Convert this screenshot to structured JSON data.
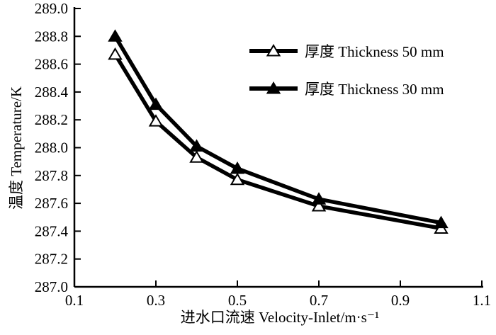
{
  "chart_data": {
    "type": "line",
    "x": [
      0.2,
      0.3,
      0.4,
      0.5,
      0.7,
      1.0
    ],
    "series": [
      {
        "name": "厚度 Thickness 50 mm",
        "marker": "open-triangle",
        "values": [
          288.67,
          288.19,
          287.93,
          287.77,
          287.58,
          287.42
        ]
      },
      {
        "name": "厚度 Thickness 30 mm",
        "marker": "filled-triangle",
        "values": [
          288.8,
          288.31,
          288.01,
          287.85,
          287.63,
          287.46
        ]
      }
    ],
    "title": "",
    "xlabel": "进水口流速 Velocity-Inlet/m·s⁻¹",
    "ylabel": "温度 Temperature/K",
    "xlim": [
      0.1,
      1.1
    ],
    "ylim": [
      287.0,
      289.0
    ],
    "xticks": [
      0.1,
      0.3,
      0.5,
      0.7,
      0.9,
      1.1
    ],
    "yticks": [
      287.0,
      287.2,
      287.4,
      287.6,
      287.8,
      288.0,
      288.2,
      288.4,
      288.6,
      288.8,
      289.0
    ],
    "grid": false,
    "legend_position": "upper-right-inside",
    "line_color": "#000000",
    "marker_open_fill": "#ffffff",
    "background": "#ffffff"
  }
}
